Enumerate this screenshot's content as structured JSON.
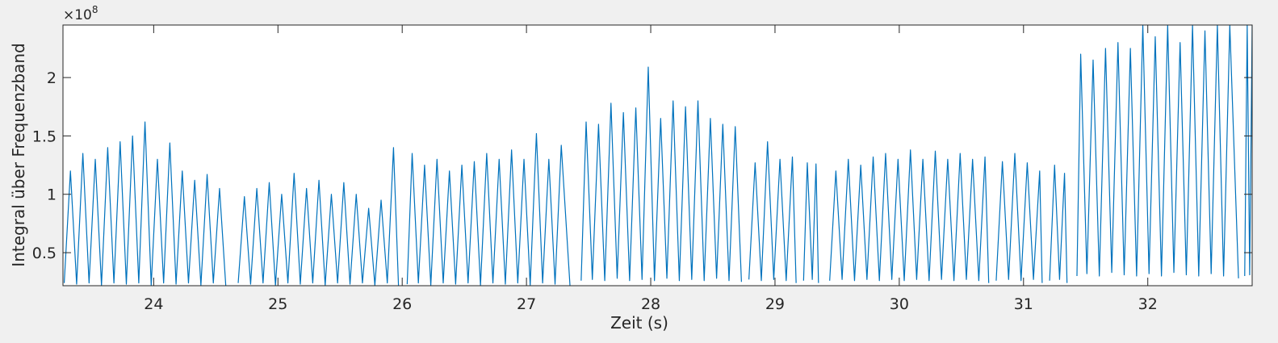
{
  "chart_data": {
    "type": "line",
    "x_label": "Zeit (s)",
    "y_label": "Integral über Frequenzband",
    "y_multiplier": {
      "base": "×10",
      "exponent": "8"
    },
    "xlim": [
      23.27,
      32.84
    ],
    "ylim": [
      0.217,
      2.45
    ],
    "xticks": [
      24,
      25,
      26,
      27,
      28,
      29,
      30,
      31,
      32
    ],
    "yticks": [
      0.5,
      1,
      1.5,
      2
    ],
    "grid": false,
    "x": [
      23.28,
      23.33,
      23.38,
      23.43,
      23.48,
      23.53,
      23.58,
      23.63,
      23.68,
      23.73,
      23.78,
      23.83,
      23.88,
      23.93,
      23.98,
      24.03,
      24.08,
      24.13,
      24.18,
      24.23,
      24.28,
      24.33,
      24.38,
      24.43,
      24.48,
      24.53,
      24.58,
      24.64,
      24.68,
      24.73,
      24.78,
      24.83,
      24.88,
      24.93,
      24.98,
      25.03,
      25.08,
      25.13,
      25.18,
      25.23,
      25.28,
      25.33,
      25.38,
      25.43,
      25.48,
      25.53,
      25.58,
      25.63,
      25.68,
      25.73,
      25.78,
      25.83,
      25.88,
      25.93,
      25.97,
      26.0,
      26.04,
      26.08,
      26.13,
      26.18,
      26.23,
      26.28,
      26.33,
      26.38,
      26.43,
      26.48,
      26.53,
      26.58,
      26.63,
      26.68,
      26.73,
      26.78,
      26.83,
      26.88,
      26.93,
      26.98,
      27.03,
      27.08,
      27.13,
      27.18,
      27.23,
      27.28,
      27.35,
      27.4,
      27.44,
      27.48,
      27.53,
      27.58,
      27.63,
      27.68,
      27.73,
      27.78,
      27.83,
      27.88,
      27.93,
      27.98,
      28.03,
      28.08,
      28.13,
      28.18,
      28.23,
      28.28,
      28.33,
      28.38,
      28.43,
      28.48,
      28.53,
      28.58,
      28.63,
      28.68,
      28.73,
      28.76,
      28.79,
      28.84,
      28.89,
      28.94,
      28.99,
      29.04,
      29.09,
      29.14,
      29.17,
      29.2,
      29.23,
      29.26,
      29.3,
      29.33,
      29.35,
      29.4,
      29.44,
      29.49,
      29.54,
      29.59,
      29.64,
      29.69,
      29.74,
      29.79,
      29.84,
      29.89,
      29.94,
      29.99,
      30.04,
      30.09,
      30.14,
      30.19,
      30.24,
      30.29,
      30.34,
      30.39,
      30.44,
      30.49,
      30.54,
      30.59,
      30.64,
      30.69,
      30.72,
      30.75,
      30.78,
      30.83,
      30.88,
      30.93,
      30.98,
      31.03,
      31.08,
      31.13,
      31.15,
      31.18,
      31.21,
      31.25,
      31.29,
      31.33,
      31.35,
      31.39,
      31.43,
      31.46,
      31.51,
      31.56,
      31.61,
      31.66,
      31.71,
      31.76,
      31.81,
      31.86,
      31.91,
      31.96,
      32.01,
      32.06,
      32.11,
      32.16,
      32.21,
      32.26,
      32.31,
      32.36,
      32.41,
      32.46,
      32.51,
      32.56,
      32.61,
      32.66,
      32.73,
      32.75,
      32.78,
      32.8,
      32.82,
      32.84
    ],
    "series": [
      {
        "color": "#0072bd",
        "values": [
          0.24,
          1.2,
          0.23,
          1.35,
          0.24,
          1.3,
          0.22,
          1.4,
          0.24,
          1.45,
          0.23,
          1.5,
          0.24,
          1.62,
          0.22,
          1.3,
          0.24,
          1.44,
          0.23,
          1.2,
          0.24,
          1.12,
          0.22,
          1.17,
          0.24,
          1.05,
          0.22,
          null,
          0.24,
          0.98,
          0.23,
          1.05,
          0.24,
          1.1,
          0.22,
          1.0,
          0.24,
          1.18,
          0.23,
          1.05,
          0.24,
          1.12,
          0.22,
          1.0,
          0.24,
          1.1,
          0.23,
          1.0,
          0.24,
          0.88,
          0.22,
          0.95,
          0.24,
          1.4,
          0.22,
          null,
          0.23,
          1.35,
          0.24,
          1.25,
          0.22,
          1.3,
          0.24,
          1.2,
          0.23,
          1.25,
          0.24,
          1.28,
          0.22,
          1.35,
          0.24,
          1.3,
          0.23,
          1.38,
          0.24,
          1.3,
          0.22,
          1.52,
          0.24,
          1.3,
          0.23,
          1.42,
          0.22,
          null,
          0.26,
          1.62,
          0.27,
          1.6,
          0.26,
          1.78,
          0.28,
          1.7,
          0.26,
          1.74,
          0.27,
          2.09,
          0.26,
          1.65,
          0.28,
          1.8,
          0.26,
          1.75,
          0.27,
          1.8,
          0.26,
          1.65,
          0.28,
          1.6,
          0.26,
          1.58,
          0.25,
          null,
          0.27,
          1.27,
          0.26,
          1.45,
          0.27,
          1.3,
          0.26,
          1.32,
          0.24,
          null,
          0.26,
          1.27,
          0.27,
          1.26,
          0.24,
          null,
          0.26,
          1.2,
          0.27,
          1.3,
          0.26,
          1.25,
          0.27,
          1.32,
          0.26,
          1.35,
          0.27,
          1.3,
          0.26,
          1.38,
          0.27,
          1.3,
          0.26,
          1.37,
          0.27,
          1.3,
          0.26,
          1.35,
          0.27,
          1.3,
          0.26,
          1.32,
          0.24,
          null,
          0.26,
          1.28,
          0.27,
          1.35,
          0.26,
          1.27,
          0.27,
          1.2,
          0.24,
          null,
          0.26,
          1.25,
          0.27,
          1.18,
          0.24,
          null,
          0.3,
          2.2,
          0.32,
          2.15,
          0.3,
          2.25,
          0.33,
          2.3,
          0.31,
          2.25,
          0.3,
          2.45,
          0.32,
          2.35,
          0.3,
          2.45,
          0.33,
          2.3,
          0.31,
          2.45,
          0.3,
          2.4,
          0.32,
          2.45,
          0.3,
          2.45,
          0.28,
          null,
          0.3,
          2.45,
          0.31,
          2.45
        ]
      }
    ]
  }
}
